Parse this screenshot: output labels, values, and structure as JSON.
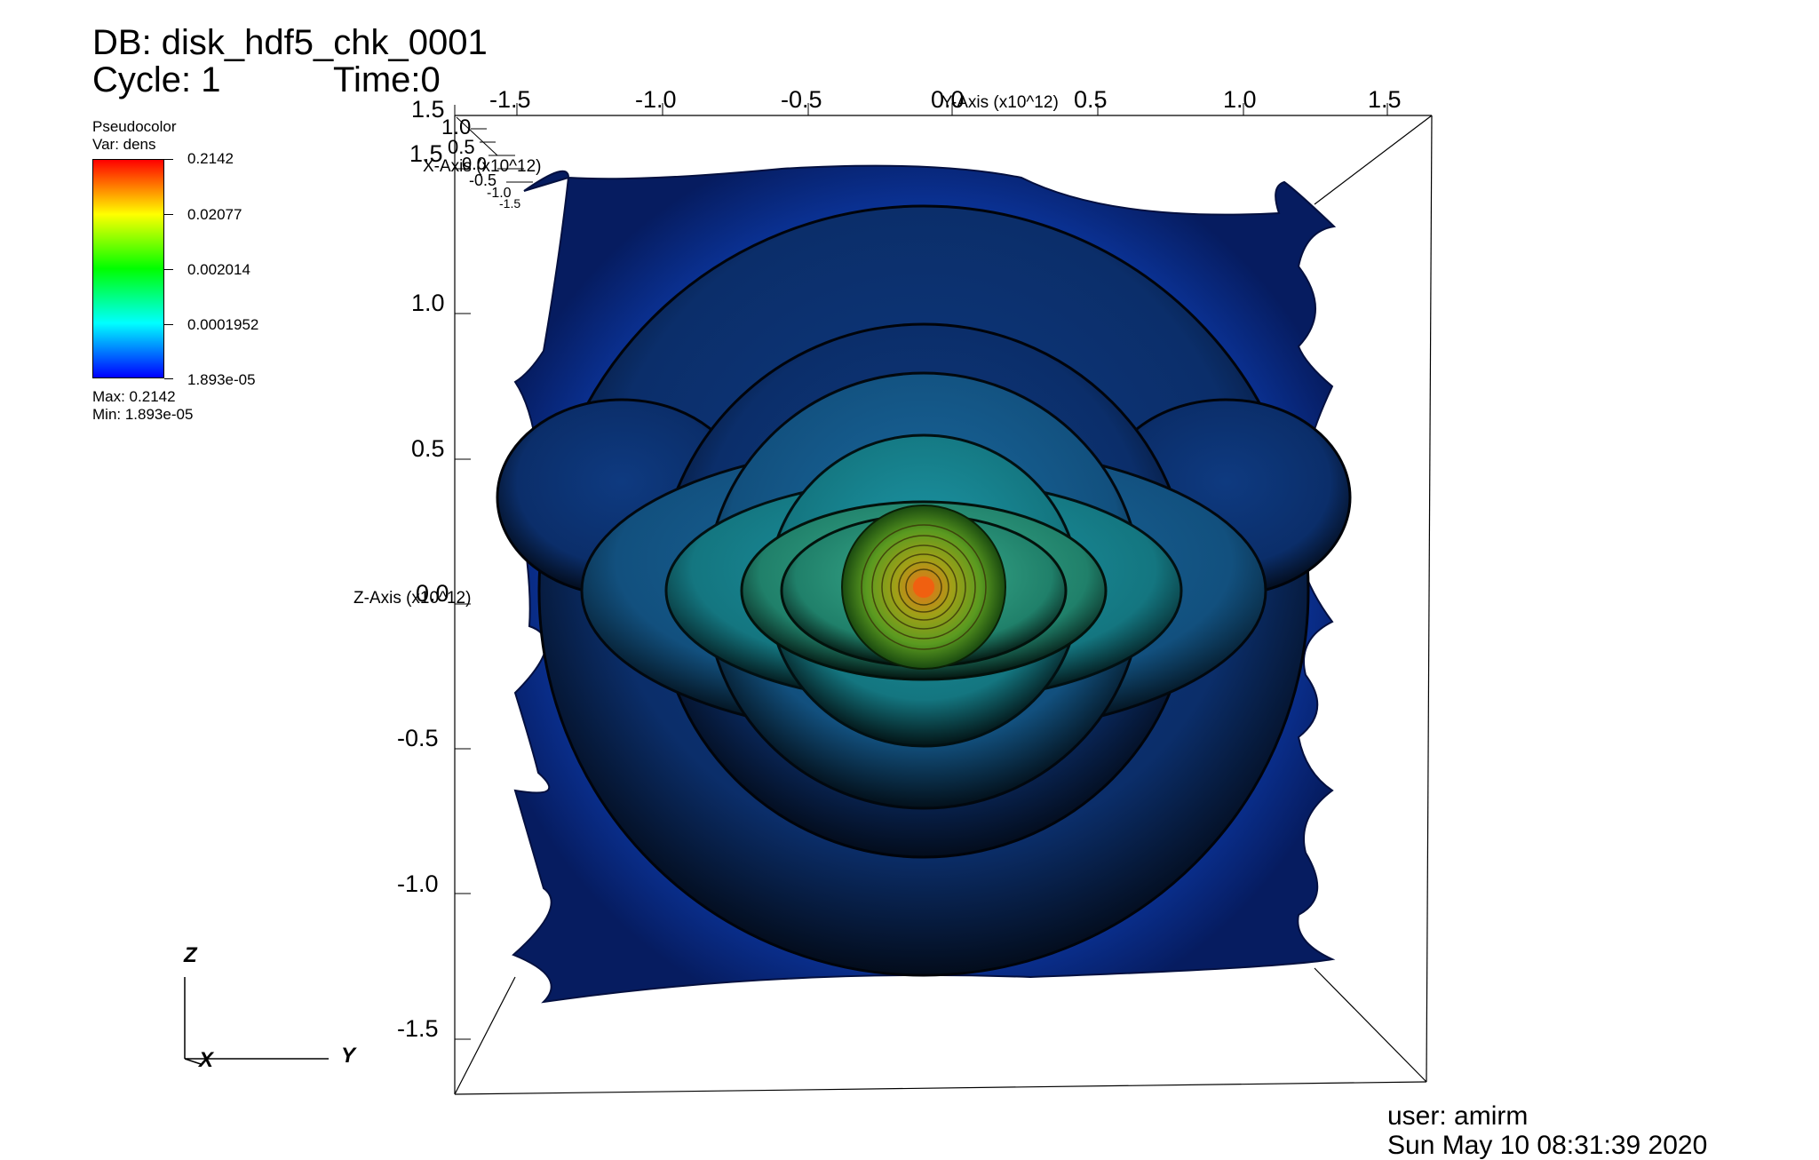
{
  "header": {
    "db_line": "DB: disk_hdf5_chk_0001",
    "cycle_line": "Cycle: 1",
    "time_line": "Time:0"
  },
  "legend": {
    "plot_type": "Pseudocolor",
    "var_line": "Var: dens",
    "ticks": [
      "0.2142",
      "0.02077",
      "0.002014",
      "0.0001952",
      "1.893e-05"
    ],
    "max_line": "Max: 0.2142",
    "min_line": "Min: 1.893e-05",
    "colors": [
      "#ff0000",
      "#ffff00",
      "#00ff00",
      "#00ffff",
      "#0000ff"
    ]
  },
  "axes": {
    "y_axis_label": "Y-Axis (x10^12)",
    "x_axis_label": "X-Axis (x10^12)",
    "z_axis_label": "Z-Axis (x10^12)",
    "top_ticks": [
      "-1.5",
      "-1.0",
      "-0.5",
      "0.0",
      "0.5",
      "1.0",
      "1.5"
    ],
    "left_ticks": [
      "1.5",
      "1.0",
      "0.5",
      "0.0",
      "-0.5",
      "-1.0",
      "-1.5"
    ],
    "corner_ticks": [
      "1.5",
      "1.0",
      "0.5",
      "0.0",
      "-0.5",
      "-1.0",
      "-1.5"
    ]
  },
  "triad": {
    "z": "Z",
    "x": "X",
    "y": "Y"
  },
  "footer": {
    "user_line": "user: amirm",
    "date_line": "Sun May 10 08:31:39 2020"
  },
  "render_colors": {
    "outer_blue": "#1030b0",
    "mid_blue": "#1a5ca8",
    "teal": "#1aa0a8",
    "green": "#5aa020",
    "core": "#e05a10"
  }
}
